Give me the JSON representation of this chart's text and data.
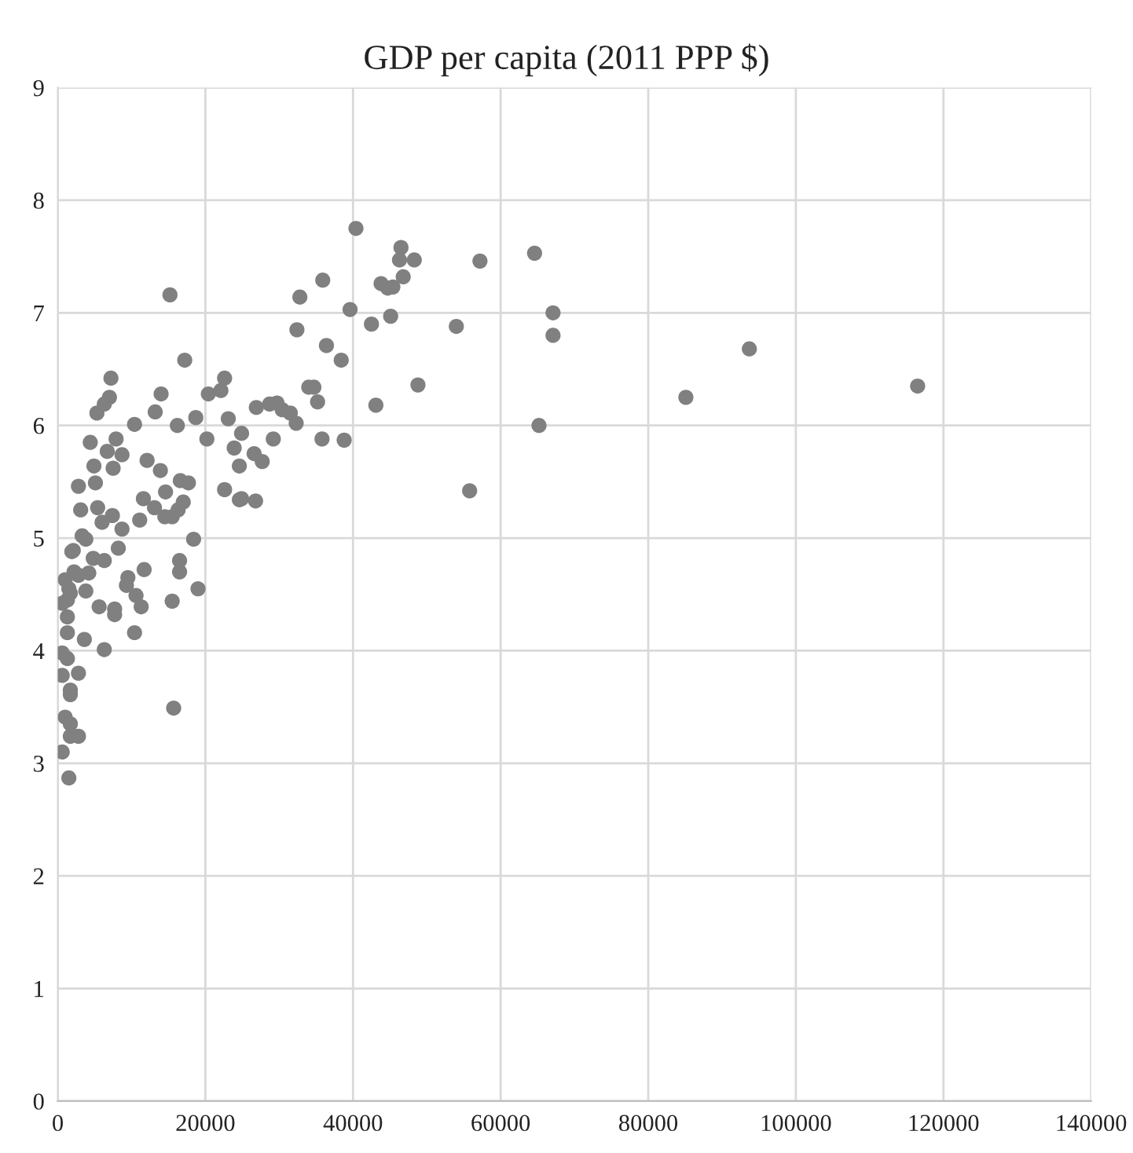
{
  "chart_data": {
    "type": "scatter",
    "title": "GDP per capita (2011 PPP $)",
    "x": [
      116500,
      93700,
      85100,
      40400,
      46500,
      46300,
      48300,
      57200,
      64600,
      35900,
      43800,
      44700,
      45400,
      46800,
      39600,
      42500,
      45100,
      54000,
      67100,
      67100,
      36400,
      38400,
      34700,
      35200,
      43100,
      48800,
      35800,
      38800,
      65200,
      55800,
      15200,
      32800,
      32400,
      17200,
      7200,
      7000,
      6300,
      5300,
      14000,
      13200,
      10400,
      16200,
      18700,
      20400,
      22600,
      22100,
      20200,
      23100,
      24900,
      23900,
      24600,
      26600,
      27700,
      22600,
      24600,
      24900,
      26800,
      26900,
      28700,
      29700,
      30400,
      31500,
      32300,
      29200,
      34000,
      4400,
      7900,
      6700,
      8700,
      4900,
      7500,
      2800,
      5100,
      12100,
      13900,
      14600,
      16600,
      17700,
      11600,
      13100,
      14500,
      15500,
      17000,
      16300,
      11100,
      3100,
      5400,
      6000,
      7400,
      8700,
      18400,
      3300,
      3800,
      2100,
      8200,
      4800,
      6300,
      11700,
      16500,
      16500,
      9500,
      9300,
      1000,
      2800,
      4200,
      1700,
      3800,
      10600,
      19000,
      15500,
      5600,
      7700,
      11300,
      600,
      7700,
      1300,
      1300,
      10400,
      3600,
      6300,
      600,
      1300,
      600,
      2800,
      1700,
      1700,
      15700,
      1000,
      1700,
      1700,
      2800,
      600,
      1500,
      1300,
      1500,
      1900,
      2200
    ],
    "values": [
      6.35,
      6.68,
      6.25,
      7.75,
      7.58,
      7.47,
      7.47,
      7.46,
      7.53,
      7.29,
      7.26,
      7.22,
      7.23,
      7.32,
      7.03,
      6.9,
      6.97,
      6.88,
      7.0,
      6.8,
      6.71,
      6.58,
      6.34,
      6.21,
      6.18,
      6.36,
      5.88,
      5.87,
      6.0,
      5.42,
      7.16,
      7.14,
      6.85,
      6.58,
      6.42,
      6.25,
      6.19,
      6.11,
      6.28,
      6.12,
      6.01,
      6.0,
      6.07,
      6.28,
      6.42,
      6.31,
      5.88,
      6.06,
      5.93,
      5.8,
      5.64,
      5.75,
      5.68,
      5.43,
      5.34,
      5.35,
      5.33,
      6.16,
      6.19,
      6.2,
      6.14,
      6.11,
      6.02,
      5.88,
      6.34,
      5.85,
      5.88,
      5.77,
      5.74,
      5.64,
      5.62,
      5.46,
      5.49,
      5.69,
      5.6,
      5.41,
      5.51,
      5.49,
      5.35,
      5.27,
      5.19,
      5.19,
      5.32,
      5.25,
      5.16,
      5.25,
      5.27,
      5.14,
      5.2,
      5.08,
      4.99,
      5.02,
      4.99,
      4.89,
      4.91,
      4.82,
      4.8,
      4.72,
      4.8,
      4.7,
      4.65,
      4.58,
      4.63,
      4.67,
      4.69,
      4.51,
      4.53,
      4.49,
      4.55,
      4.44,
      4.39,
      4.37,
      4.39,
      4.42,
      4.32,
      4.3,
      4.16,
      4.16,
      4.1,
      4.01,
      3.98,
      3.93,
      3.78,
      3.8,
      3.65,
      3.61,
      3.49,
      3.41,
      3.35,
      3.24,
      3.24,
      3.1,
      2.87,
      4.45,
      4.55,
      4.88,
      4.7
    ],
    "color": "#808080",
    "marker": "circle",
    "xlim": [
      0,
      140000
    ],
    "xticks": [
      0,
      20000,
      40000,
      60000,
      80000,
      100000,
      120000,
      140000
    ],
    "ylim": [
      0,
      9
    ],
    "yticks": [
      0,
      1,
      2,
      3,
      4,
      5,
      6,
      7,
      8,
      9
    ],
    "grid": true
  }
}
